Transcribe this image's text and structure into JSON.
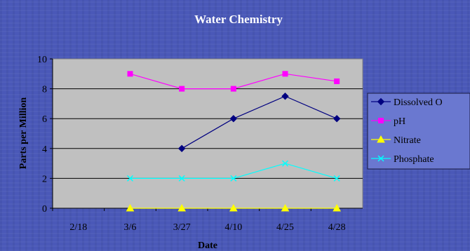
{
  "chart_data": {
    "type": "line",
    "title": "Water Chemistry",
    "xlabel": "Date",
    "ylabel": "Parts per Million",
    "categories": [
      "2/18",
      "3/6",
      "3/27",
      "4/10",
      "4/25",
      "4/28"
    ],
    "ylim": [
      0,
      10
    ],
    "yticks": [
      0,
      2,
      4,
      6,
      8,
      10
    ],
    "grid": true,
    "legend_position": "right",
    "plot_background": "#c0c0c0",
    "series": [
      {
        "name": "Dissolved O",
        "color": "#000080",
        "marker": "diamond",
        "values": [
          null,
          null,
          4,
          6,
          7.5,
          6
        ]
      },
      {
        "name": "pH",
        "color": "#ff00ff",
        "marker": "square",
        "values": [
          null,
          9,
          8,
          8,
          9,
          8.5
        ]
      },
      {
        "name": "Nitrate",
        "color": "#ffff00",
        "marker": "triangle",
        "values": [
          null,
          0,
          0,
          0,
          0,
          0
        ]
      },
      {
        "name": "Phosphate",
        "color": "#00ffff",
        "marker": "x",
        "values": [
          null,
          2,
          2,
          2,
          3,
          2
        ]
      }
    ]
  }
}
